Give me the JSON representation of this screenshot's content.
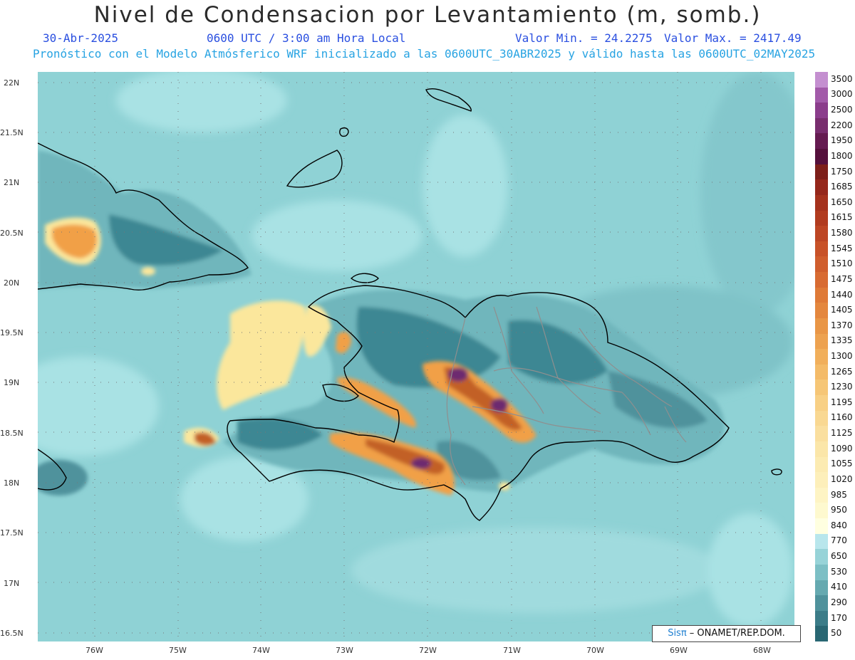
{
  "title": "Nivel de Condensacion por Levantamiento (m, somb.)",
  "date": "30-Abr-2025",
  "time": "0600 UTC / 3:00 am Hora Local",
  "min_label": "Valor Min. = 24.2275",
  "max_label": "Valor Max. = 2417.49",
  "subtitle": "Pronóstico con el Modelo Atmósferico WRF inicializado a las 0600UTC_30ABR2025 y válido hasta las  0600UTC_02MAY2025",
  "credit": {
    "sis": "Sisπ",
    "rest": " – ONAMET/REP.DOM."
  },
  "lat_labels": [
    "22N",
    "21.5N",
    "21N",
    "20.5N",
    "20N",
    "19.5N",
    "19N",
    "18.5N",
    "18N",
    "17.5N",
    "17N",
    "16.5N"
  ],
  "lon_labels": [
    "76W",
    "75W",
    "74W",
    "73W",
    "72W",
    "71W",
    "70W",
    "69W",
    "68W"
  ],
  "legend": {
    "levels": [
      "3500",
      "3000",
      "2500",
      "2200",
      "1950",
      "1800",
      "1750",
      "1685",
      "1650",
      "1615",
      "1580",
      "1545",
      "1510",
      "1475",
      "1440",
      "1405",
      "1370",
      "1335",
      "1300",
      "1265",
      "1230",
      "1195",
      "1160",
      "1125",
      "1090",
      "1055",
      "1020",
      "985",
      "950",
      "840",
      "770",
      "650",
      "530",
      "410",
      "290",
      "170",
      "50"
    ],
    "colors": [
      "#c48fd0",
      "#a25aa9",
      "#8b3d8c",
      "#782d6e",
      "#651b51",
      "#55103c",
      "#7d1f1a",
      "#95271b",
      "#a5321d",
      "#b13b1f",
      "#bd4624",
      "#c85228",
      "#d05e2d",
      "#d86b32",
      "#df7a37",
      "#e4873e",
      "#e99646",
      "#eda250",
      "#f1af5b",
      "#f4bb68",
      "#f6c676",
      "#f8d085",
      "#f9d892",
      "#fadf9f",
      "#fbe6a9",
      "#fcebb2",
      "#fdefba",
      "#fef4c4",
      "#fef9cf",
      "#ffffe0",
      "#b8e6ec",
      "#97d3d8",
      "#7cbfc5",
      "#65a9b0",
      "#4f929c",
      "#3b7c88",
      "#296773"
    ]
  },
  "map": {
    "region": "Hispaniola (Haiti / Rep. Dominicana), E Cuba, Bahamas",
    "colors": {
      "sea": "#8fd2d5",
      "sea_light": "#a9e2e4",
      "land": "#6fb6bc",
      "land_dark": "#3d8793",
      "yellow": "#fbe79c",
      "orange": "#f1a047",
      "brown": "#c26026",
      "purple": "#6d2a70",
      "coast": "#000000",
      "border": "#8f8f8f"
    }
  }
}
